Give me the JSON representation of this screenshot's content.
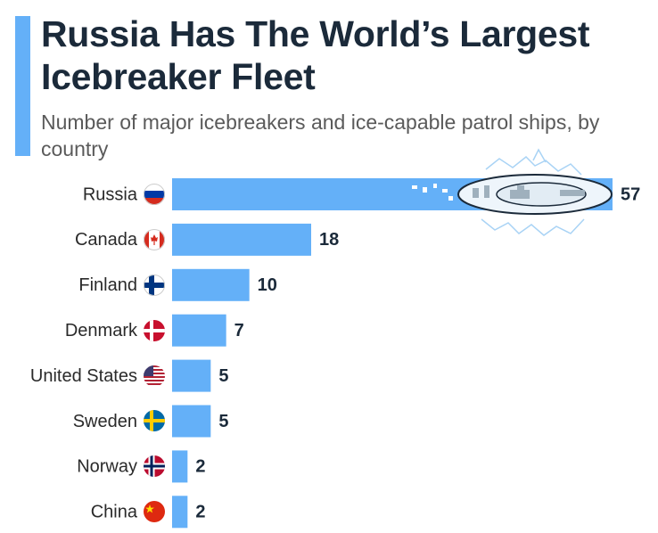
{
  "chart_data": {
    "type": "bar",
    "orientation": "horizontal",
    "title": "Russia Has The World’s Largest Icebreaker Fleet",
    "subtitle": "Number of major icebreakers and ice-capable patrol ships, by country",
    "categories": [
      "Russia",
      "Canada",
      "Finland",
      "Denmark",
      "United States",
      "Sweden",
      "Norway",
      "China"
    ],
    "values": [
      57,
      18,
      10,
      7,
      5,
      5,
      2,
      2
    ],
    "color": "#64b0f8"
  }
}
